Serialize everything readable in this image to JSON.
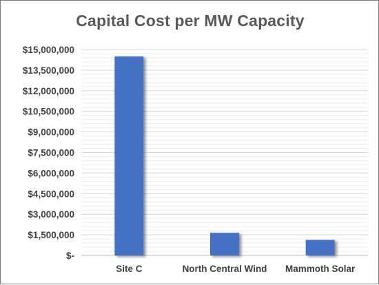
{
  "chart_data": {
    "type": "bar",
    "title": "Capital Cost per MW Capacity",
    "xlabel": "",
    "ylabel": "",
    "categories": [
      "Site C",
      "North Central Wind",
      "Mammoth Solar"
    ],
    "values": [
      14500000,
      1650000,
      1130000
    ],
    "ylim": [
      0,
      15000000
    ],
    "yticks": [
      0,
      1500000,
      3000000,
      4500000,
      6000000,
      7500000,
      9000000,
      10500000,
      12000000,
      13500000,
      15000000
    ],
    "ytick_labels": [
      "$-",
      "$1,500,000",
      "$3,000,000",
      "$4,500,000",
      "$6,000,000",
      "$7,500,000",
      "$9,000,000",
      "$10,500,000",
      "$12,000,000",
      "$13,500,000",
      "$15,000,000"
    ],
    "grid": true,
    "legend": "none",
    "colors": {
      "bar": "#4472c4",
      "grid": "#d9d9d9",
      "text": "#404040",
      "title": "#595959"
    }
  }
}
